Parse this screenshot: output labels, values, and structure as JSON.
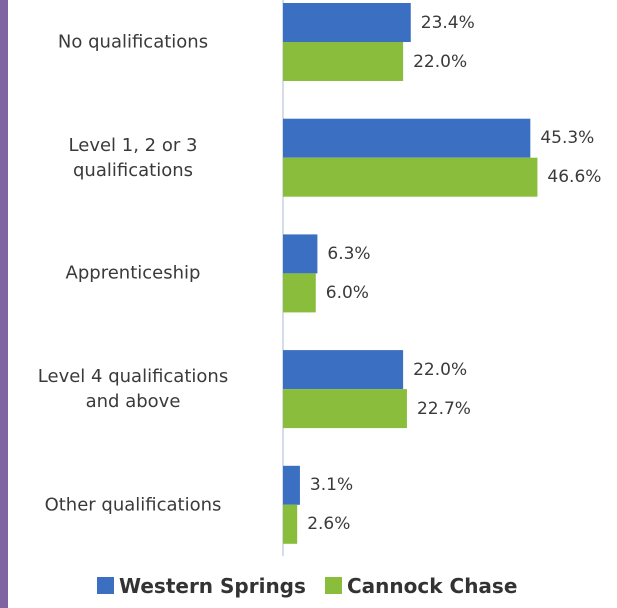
{
  "chart_data": {
    "type": "barh",
    "categories": [
      "No qualifications",
      "Level 1, 2 or 3\nqualifications",
      "Apprenticeship",
      "Level 4 qualifications\nand above",
      "Other qualifications"
    ],
    "series": [
      {
        "name": "Western Springs",
        "color": "#3b6fc2",
        "values": [
          23.4,
          45.3,
          6.3,
          22.0,
          3.1
        ],
        "value_labels": [
          "23.4%",
          "45.3%",
          "6.3%",
          "22.0%",
          "3.1%"
        ]
      },
      {
        "name": "Cannock Chase",
        "color": "#8bbd3c",
        "values": [
          22.0,
          46.6,
          6.0,
          22.7,
          2.6
        ],
        "value_labels": [
          "22.0%",
          "46.6%",
          "6.0%",
          "22.7%",
          "2.6%"
        ]
      }
    ],
    "xlim": [
      0,
      50
    ],
    "legend": "bottom"
  }
}
